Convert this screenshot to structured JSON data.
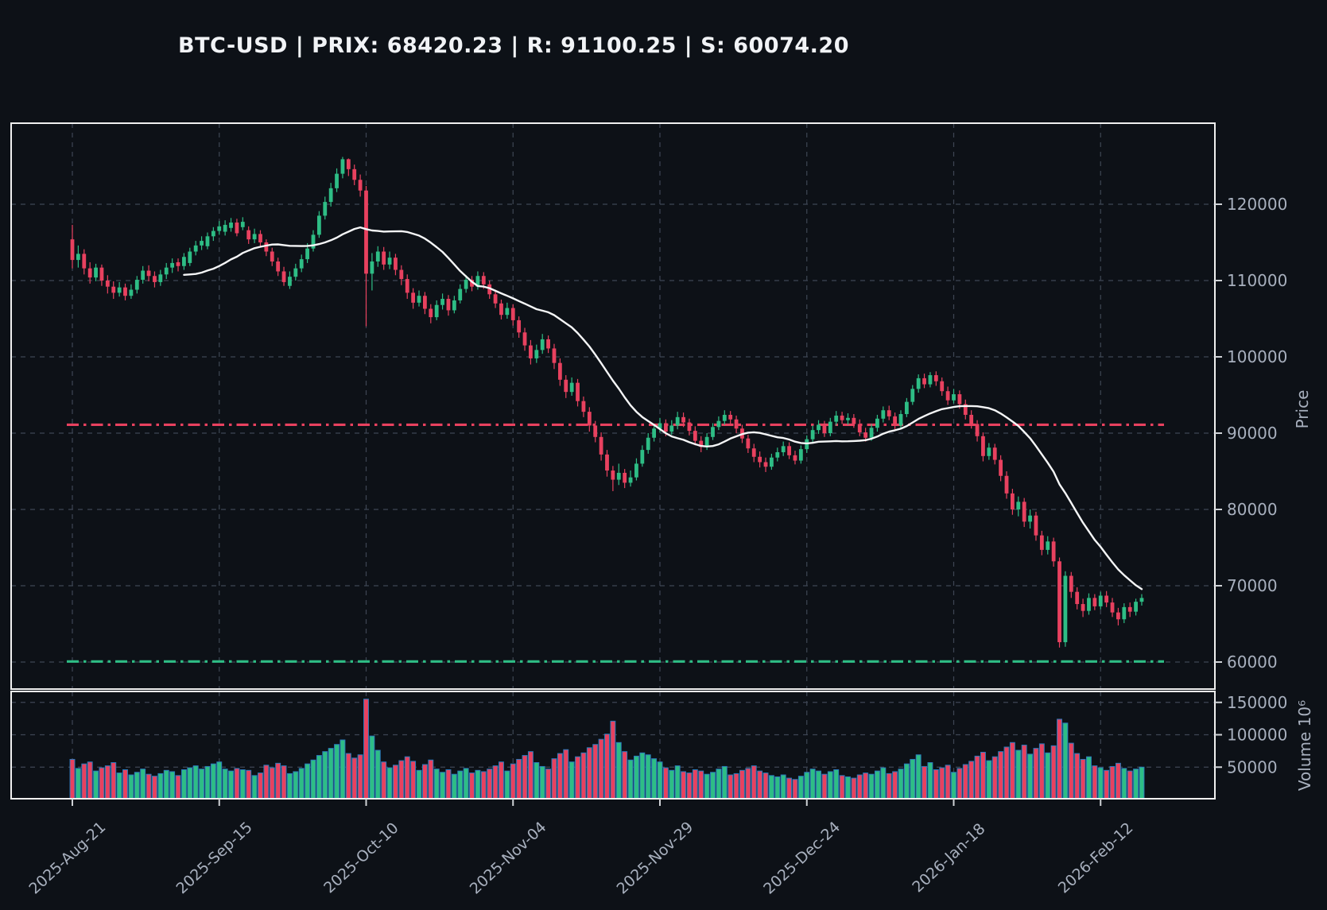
{
  "title": "BTC-USD | PRIX: 68420.23 | R: 91100.25 | S: 60074.20",
  "chart_data": {
    "type": "candlestick",
    "symbol": "BTC-USD",
    "last_price": 68420.23,
    "resistance": 91100.25,
    "support": 60074.2,
    "frequency": "daily",
    "start_date": "2025-08-21",
    "ma_window": 20,
    "price_axis": {
      "label": "Price",
      "ticks": [
        120000,
        110000,
        100000,
        90000,
        80000,
        70000,
        60000
      ]
    },
    "volume_axis": {
      "label": "Volume  10⁶",
      "ticks": [
        150000,
        100000,
        50000
      ]
    },
    "x_ticks": [
      {
        "label": "2025-Aug-21",
        "index": 0
      },
      {
        "label": "2025-Sep-15",
        "index": 25
      },
      {
        "label": "2025-Oct-10",
        "index": 50
      },
      {
        "label": "2025-Nov-04",
        "index": 75
      },
      {
        "label": "2025-Nov-29",
        "index": 100
      },
      {
        "label": "2025-Dec-24",
        "index": 125
      },
      {
        "label": "2026-Jan-18",
        "index": 150
      },
      {
        "label": "2026-Feb-12",
        "index": 175
      }
    ],
    "price_unit_kusd": true,
    "candles": [
      [
        115.4,
        117.3,
        111.6,
        112.7,
        62000
      ],
      [
        112.7,
        114.6,
        111.7,
        113.5,
        48000
      ],
      [
        113.5,
        114.1,
        110.8,
        111.6,
        55000
      ],
      [
        111.6,
        112.4,
        109.6,
        110.4,
        58000
      ],
      [
        110.4,
        112.2,
        109.9,
        111.7,
        44000
      ],
      [
        111.7,
        112.1,
        109.3,
        110.0,
        49000
      ],
      [
        110.0,
        110.7,
        108.3,
        109.2,
        52000
      ],
      [
        109.2,
        109.9,
        107.6,
        108.4,
        57000
      ],
      [
        108.4,
        109.8,
        107.9,
        109.1,
        41000
      ],
      [
        109.1,
        109.6,
        107.4,
        108.0,
        46000
      ],
      [
        108.0,
        109.5,
        107.6,
        108.8,
        38000
      ],
      [
        108.8,
        110.6,
        108.3,
        110.1,
        42000
      ],
      [
        110.1,
        111.9,
        109.6,
        111.3,
        47000
      ],
      [
        111.3,
        112.0,
        109.9,
        110.6,
        39000
      ],
      [
        110.6,
        111.2,
        109.1,
        109.8,
        36000
      ],
      [
        109.8,
        111.4,
        109.3,
        110.8,
        40000
      ],
      [
        110.8,
        112.3,
        110.2,
        111.7,
        45000
      ],
      [
        111.7,
        112.9,
        111.0,
        112.3,
        43000
      ],
      [
        112.4,
        112.9,
        111.2,
        111.9,
        37000
      ],
      [
        111.9,
        113.6,
        111.4,
        113.1,
        46000
      ],
      [
        112.3,
        114.3,
        111.9,
        113.8,
        49000
      ],
      [
        113.8,
        115.2,
        113.3,
        114.6,
        52000
      ],
      [
        114.6,
        115.8,
        114.0,
        115.2,
        47000
      ],
      [
        114.5,
        116.3,
        114.1,
        115.8,
        51000
      ],
      [
        115.8,
        117.0,
        115.2,
        116.5,
        55000
      ],
      [
        116.5,
        117.8,
        116.0,
        117.1,
        58000
      ],
      [
        116.4,
        117.9,
        115.9,
        117.3,
        47000
      ],
      [
        116.9,
        118.2,
        116.4,
        117.6,
        44000
      ],
      [
        117.6,
        118.1,
        115.8,
        116.2,
        48000
      ],
      [
        117.0,
        118.3,
        116.6,
        117.7,
        46000
      ],
      [
        116.6,
        117.1,
        114.8,
        115.4,
        45000
      ],
      [
        115.4,
        116.8,
        114.9,
        116.1,
        37000
      ],
      [
        116.1,
        116.6,
        114.4,
        115.0,
        41000
      ],
      [
        115.0,
        115.4,
        113.2,
        113.8,
        53000
      ],
      [
        113.8,
        114.3,
        111.9,
        112.5,
        49000
      ],
      [
        112.5,
        113.0,
        110.6,
        111.2,
        56000
      ],
      [
        111.2,
        111.8,
        109.3,
        109.8,
        52000
      ],
      [
        109.3,
        111.2,
        108.9,
        110.5,
        40000
      ],
      [
        110.5,
        112.2,
        110.0,
        111.6,
        43000
      ],
      [
        111.6,
        113.4,
        111.1,
        112.8,
        48000
      ],
      [
        112.8,
        114.9,
        112.3,
        114.2,
        55000
      ],
      [
        114.2,
        116.6,
        113.8,
        116.0,
        61000
      ],
      [
        116.0,
        119.1,
        115.6,
        118.5,
        68000
      ],
      [
        118.5,
        121.0,
        118.0,
        120.3,
        74000
      ],
      [
        120.3,
        122.8,
        119.7,
        122.1,
        79000
      ],
      [
        122.1,
        124.7,
        121.6,
        124.0,
        85000
      ],
      [
        124.0,
        126.2,
        123.4,
        125.9,
        92000
      ],
      [
        125.9,
        126.0,
        123.7,
        124.6,
        71000
      ],
      [
        124.6,
        125.2,
        122.5,
        123.2,
        64000
      ],
      [
        123.2,
        123.9,
        121.0,
        121.8,
        69000
      ],
      [
        121.8,
        122.4,
        104.0,
        110.9,
        155000
      ],
      [
        110.9,
        113.6,
        108.7,
        112.5,
        98000
      ],
      [
        112.5,
        114.5,
        111.8,
        113.8,
        76000
      ],
      [
        113.8,
        114.4,
        111.4,
        112.1,
        58000
      ],
      [
        112.1,
        113.8,
        111.5,
        113.0,
        49000
      ],
      [
        113.0,
        113.5,
        110.7,
        111.4,
        53000
      ],
      [
        111.4,
        112.0,
        109.4,
        110.2,
        60000
      ],
      [
        110.2,
        110.8,
        107.6,
        108.4,
        66000
      ],
      [
        108.4,
        109.0,
        106.3,
        107.1,
        59000
      ],
      [
        107.1,
        108.7,
        106.6,
        108.0,
        45000
      ],
      [
        108.0,
        108.5,
        105.6,
        106.3,
        54000
      ],
      [
        106.3,
        106.9,
        104.4,
        105.2,
        61000
      ],
      [
        105.2,
        107.4,
        104.8,
        106.8,
        47000
      ],
      [
        106.8,
        108.3,
        106.2,
        107.6,
        42000
      ],
      [
        107.6,
        108.1,
        105.4,
        106.1,
        46000
      ],
      [
        106.1,
        108.0,
        105.7,
        107.4,
        39000
      ],
      [
        107.4,
        109.5,
        107.0,
        108.9,
        44000
      ],
      [
        108.9,
        110.7,
        108.4,
        110.1,
        48000
      ],
      [
        110.1,
        110.6,
        108.6,
        109.2,
        41000
      ],
      [
        109.2,
        111.2,
        108.8,
        110.6,
        45000
      ],
      [
        110.6,
        111.1,
        108.9,
        109.5,
        43000
      ],
      [
        109.5,
        110.0,
        107.6,
        108.2,
        47000
      ],
      [
        108.2,
        108.8,
        106.4,
        107.0,
        52000
      ],
      [
        107.0,
        107.5,
        104.9,
        105.5,
        58000
      ],
      [
        105.5,
        107.1,
        105.0,
        106.4,
        44000
      ],
      [
        106.4,
        106.9,
        104.1,
        104.8,
        55000
      ],
      [
        104.8,
        105.3,
        102.5,
        103.2,
        62000
      ],
      [
        103.2,
        103.8,
        100.8,
        101.5,
        68000
      ],
      [
        101.5,
        102.2,
        99.0,
        99.8,
        74000
      ],
      [
        99.8,
        101.6,
        99.2,
        100.9,
        57000
      ],
      [
        100.9,
        103.0,
        100.4,
        102.3,
        51000
      ],
      [
        102.3,
        102.8,
        100.5,
        101.1,
        47000
      ],
      [
        101.1,
        101.7,
        98.4,
        99.2,
        63000
      ],
      [
        99.2,
        99.8,
        96.2,
        97.0,
        71000
      ],
      [
        97.0,
        97.6,
        94.6,
        95.4,
        77000
      ],
      [
        95.4,
        97.3,
        94.9,
        96.6,
        58000
      ],
      [
        96.6,
        97.1,
        93.5,
        94.2,
        66000
      ],
      [
        94.2,
        94.8,
        92.1,
        92.8,
        72000
      ],
      [
        92.8,
        93.4,
        90.2,
        91.0,
        80000
      ],
      [
        91.0,
        91.6,
        88.8,
        89.5,
        85000
      ],
      [
        89.5,
        90.1,
        86.4,
        87.2,
        93000
      ],
      [
        87.2,
        87.8,
        84.3,
        85.1,
        101000
      ],
      [
        85.1,
        85.7,
        82.4,
        83.9,
        121000
      ],
      [
        83.9,
        86.0,
        83.2,
        84.8,
        88000
      ],
      [
        84.8,
        85.3,
        82.8,
        83.5,
        74000
      ],
      [
        83.5,
        85.1,
        83.0,
        84.2,
        61000
      ],
      [
        84.2,
        86.7,
        83.8,
        86.0,
        67000
      ],
      [
        86.0,
        88.4,
        85.6,
        87.8,
        72000
      ],
      [
        87.8,
        90.0,
        87.3,
        89.4,
        69000
      ],
      [
        89.4,
        91.2,
        88.9,
        90.6,
        63000
      ],
      [
        90.6,
        92.0,
        90.1,
        91.3,
        58000
      ],
      [
        91.3,
        91.8,
        89.6,
        90.2,
        49000
      ],
      [
        90.2,
        91.7,
        89.8,
        91.0,
        45000
      ],
      [
        91.0,
        92.8,
        90.5,
        92.1,
        52000
      ],
      [
        92.1,
        92.7,
        90.8,
        91.4,
        43000
      ],
      [
        91.4,
        91.9,
        89.7,
        90.3,
        41000
      ],
      [
        90.3,
        90.9,
        88.4,
        89.0,
        46000
      ],
      [
        89.0,
        89.6,
        87.5,
        88.2,
        44000
      ],
      [
        88.2,
        90.0,
        87.8,
        89.5,
        39000
      ],
      [
        89.5,
        91.3,
        89.1,
        90.8,
        42000
      ],
      [
        90.8,
        92.2,
        90.4,
        91.6,
        47000
      ],
      [
        91.6,
        93.0,
        91.1,
        92.4,
        51000
      ],
      [
        92.4,
        92.9,
        91.2,
        91.8,
        38000
      ],
      [
        91.8,
        92.3,
        90.0,
        90.6,
        40000
      ],
      [
        90.6,
        91.1,
        88.7,
        89.3,
        45000
      ],
      [
        89.3,
        89.8,
        87.4,
        88.0,
        48000
      ],
      [
        88.0,
        88.6,
        86.2,
        86.9,
        52000
      ],
      [
        86.9,
        87.6,
        85.5,
        86.2,
        44000
      ],
      [
        86.2,
        86.8,
        84.9,
        85.6,
        41000
      ],
      [
        85.6,
        87.3,
        85.2,
        86.8,
        37000
      ],
      [
        86.8,
        88.1,
        86.3,
        87.5,
        35000
      ],
      [
        87.5,
        88.9,
        87.0,
        88.3,
        38000
      ],
      [
        88.3,
        88.8,
        86.6,
        87.1,
        33000
      ],
      [
        87.1,
        87.7,
        85.9,
        86.4,
        31000
      ],
      [
        86.4,
        88.4,
        86.0,
        87.9,
        36000
      ],
      [
        87.9,
        89.7,
        87.4,
        89.2,
        42000
      ],
      [
        89.2,
        91.0,
        88.8,
        90.4,
        47000
      ],
      [
        90.4,
        91.7,
        89.9,
        91.1,
        44000
      ],
      [
        91.1,
        91.6,
        89.5,
        90.0,
        39000
      ],
      [
        90.0,
        92.0,
        89.6,
        91.5,
        43000
      ],
      [
        91.5,
        92.9,
        91.0,
        92.3,
        46000
      ],
      [
        92.3,
        92.8,
        91.2,
        91.7,
        37000
      ],
      [
        91.7,
        92.6,
        91.1,
        92.0,
        35000
      ],
      [
        92.0,
        92.5,
        90.7,
        91.2,
        33000
      ],
      [
        91.2,
        91.8,
        89.6,
        90.1,
        38000
      ],
      [
        90.1,
        90.7,
        88.9,
        89.4,
        41000
      ],
      [
        89.4,
        91.2,
        89.0,
        90.7,
        39000
      ],
      [
        90.7,
        92.4,
        90.2,
        91.9,
        44000
      ],
      [
        91.9,
        93.5,
        91.4,
        93.0,
        49000
      ],
      [
        93.0,
        93.6,
        91.7,
        92.2,
        40000
      ],
      [
        92.2,
        92.7,
        90.5,
        91.0,
        43000
      ],
      [
        91.0,
        93.0,
        90.6,
        92.5,
        47000
      ],
      [
        92.5,
        94.6,
        92.1,
        94.1,
        55000
      ],
      [
        94.1,
        96.3,
        93.7,
        95.8,
        62000
      ],
      [
        95.8,
        97.7,
        95.3,
        97.2,
        69000
      ],
      [
        97.2,
        97.8,
        95.9,
        96.4,
        51000
      ],
      [
        96.4,
        98.0,
        96.0,
        97.6,
        57000
      ],
      [
        97.6,
        98.1,
        96.2,
        96.8,
        46000
      ],
      [
        96.8,
        97.3,
        94.9,
        95.5,
        49000
      ],
      [
        95.5,
        96.1,
        93.7,
        94.3,
        53000
      ],
      [
        94.3,
        95.8,
        93.9,
        95.1,
        42000
      ],
      [
        95.1,
        95.6,
        93.2,
        93.8,
        48000
      ],
      [
        93.8,
        94.4,
        91.8,
        92.4,
        54000
      ],
      [
        92.4,
        93.0,
        90.6,
        91.2,
        59000
      ],
      [
        91.2,
        91.7,
        88.9,
        89.6,
        67000
      ],
      [
        89.6,
        90.1,
        86.3,
        87.0,
        73000
      ],
      [
        87.0,
        88.7,
        86.5,
        88.1,
        60000
      ],
      [
        88.1,
        88.6,
        85.9,
        86.5,
        66000
      ],
      [
        86.5,
        87.1,
        83.7,
        84.4,
        74000
      ],
      [
        84.4,
        85.0,
        81.4,
        82.1,
        81000
      ],
      [
        82.1,
        82.7,
        79.3,
        80.0,
        88000
      ],
      [
        80.0,
        81.7,
        79.1,
        81.0,
        76000
      ],
      [
        81.0,
        81.5,
        77.7,
        78.4,
        84000
      ],
      [
        78.4,
        80.0,
        77.5,
        79.2,
        70000
      ],
      [
        79.2,
        79.7,
        75.9,
        76.6,
        79000
      ],
      [
        76.6,
        77.2,
        74.0,
        74.7,
        86000
      ],
      [
        74.7,
        76.5,
        74.1,
        75.8,
        72000
      ],
      [
        75.8,
        76.3,
        72.5,
        73.2,
        83000
      ],
      [
        73.2,
        73.7,
        61.9,
        62.6,
        124000
      ],
      [
        62.6,
        71.9,
        62.0,
        71.3,
        118000
      ],
      [
        71.3,
        71.8,
        68.4,
        69.2,
        87000
      ],
      [
        69.2,
        69.8,
        66.9,
        67.6,
        71000
      ],
      [
        67.6,
        68.3,
        65.9,
        66.7,
        62000
      ],
      [
        66.7,
        69.0,
        66.2,
        68.4,
        66000
      ],
      [
        68.4,
        68.9,
        66.8,
        67.3,
        52000
      ],
      [
        67.3,
        69.2,
        66.9,
        68.7,
        49000
      ],
      [
        68.7,
        69.3,
        67.2,
        67.8,
        45000
      ],
      [
        67.8,
        68.4,
        65.9,
        66.5,
        51000
      ],
      [
        66.5,
        67.1,
        64.8,
        65.6,
        56000
      ],
      [
        65.6,
        67.7,
        65.1,
        67.2,
        48000
      ],
      [
        67.2,
        67.8,
        65.9,
        66.6,
        44000
      ],
      [
        66.6,
        68.3,
        66.1,
        67.9,
        47000
      ],
      [
        67.9,
        68.9,
        67.4,
        68.4,
        50000
      ]
    ]
  },
  "colors": {
    "background": "#0d1117",
    "pane_border": "#f0f0f0",
    "grid": "#3e4654",
    "up": "#2ebd85",
    "down": "#e8415f",
    "volume_edge": "#2b7bbd",
    "ma_line": "#f5f6f7",
    "resistance": "#e8415f",
    "support": "#2ebd85",
    "tick_text": "#a8b0be",
    "tick_mark": "#cfd2d6",
    "title_text": "#f1f3f6"
  }
}
